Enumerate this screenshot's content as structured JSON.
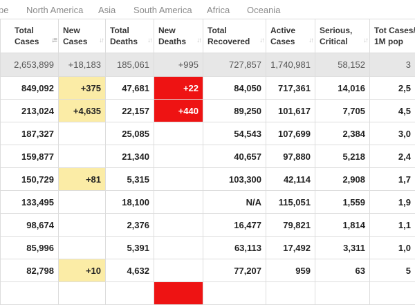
{
  "tabs": [
    "pe",
    "North America",
    "Asia",
    "South America",
    "Africa",
    "Oceania"
  ],
  "headers": [
    {
      "line1": "Total",
      "line2": "Cases",
      "sort": "↓≡",
      "active": true
    },
    {
      "line1": "New",
      "line2": "Cases",
      "sort": "↓↑",
      "active": false
    },
    {
      "line1": "Total",
      "line2": "Deaths",
      "sort": "↓↑",
      "active": false
    },
    {
      "line1": "New",
      "line2": "Deaths",
      "sort": "↓↑",
      "active": false
    },
    {
      "line1": "Total",
      "line2": "Recovered",
      "sort": "↓↑",
      "active": false
    },
    {
      "line1": "Active",
      "line2": "Cases",
      "sort": "↓↑",
      "active": false
    },
    {
      "line1": "Serious,",
      "line2": "Critical",
      "sort": "↓↑",
      "active": false
    },
    {
      "line1": "Tot Cases/",
      "line2": "1M pop",
      "sort": "",
      "active": false
    }
  ],
  "total_row": [
    "2,653,899",
    "+18,183",
    "185,061",
    "+995",
    "727,857",
    "1,740,981",
    "58,152",
    "3"
  ],
  "rows": [
    [
      "849,092",
      "+375",
      "47,681",
      "+22",
      "84,050",
      "717,361",
      "14,016",
      "2,5"
    ],
    [
      "213,024",
      "+4,635",
      "22,157",
      "+440",
      "89,250",
      "101,617",
      "7,705",
      "4,5"
    ],
    [
      "187,327",
      "",
      "25,085",
      "",
      "54,543",
      "107,699",
      "2,384",
      "3,0"
    ],
    [
      "159,877",
      "",
      "21,340",
      "",
      "40,657",
      "97,880",
      "5,218",
      "2,4"
    ],
    [
      "150,729",
      "+81",
      "5,315",
      "",
      "103,300",
      "42,114",
      "2,908",
      "1,7"
    ],
    [
      "133,495",
      "",
      "18,100",
      "",
      "N/A",
      "115,051",
      "1,559",
      "1,9"
    ],
    [
      "98,674",
      "",
      "2,376",
      "",
      "16,477",
      "79,821",
      "1,814",
      "1,1"
    ],
    [
      "85,996",
      "",
      "5,391",
      "",
      "63,113",
      "17,492",
      "3,311",
      "1,0"
    ],
    [
      "82,798",
      "+10",
      "4,632",
      "",
      "77,207",
      "959",
      "63",
      "5"
    ],
    [
      "",
      "",
      "",
      "",
      "",
      "",
      "",
      ""
    ]
  ],
  "colors": {
    "new_cases_highlight": "#fbeca6",
    "new_deaths_highlight": "#ee1313",
    "total_row_bg": "#e7e7e7"
  }
}
